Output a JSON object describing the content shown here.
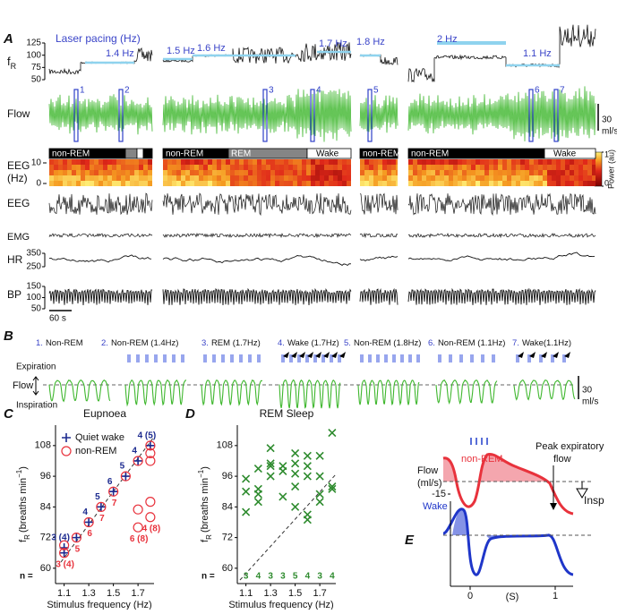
{
  "panel_A": {
    "label": "A",
    "pacing_title": "Laser pacing (Hz)",
    "fr_label": {
      "main": "f",
      "sub": "R"
    },
    "fr_ticks": [
      125,
      100,
      75,
      50
    ],
    "pacing_labels": [
      "1.4 Hz",
      "1.5 Hz",
      "1.6 Hz",
      "1.7 Hz",
      "1.8 Hz",
      "2 Hz",
      "1.1 Hz"
    ],
    "flow_label": "Flow",
    "flow_scale": [
      "30",
      "ml/s"
    ],
    "markers": [
      "1",
      "2",
      "3",
      "4",
      "5",
      "6",
      "7"
    ],
    "states": [
      "non-REM",
      "non-REM",
      "REM",
      "Wake",
      "non-REM",
      "non-REM",
      "Wake"
    ],
    "eeg_hz_label": [
      "EEG",
      "(Hz)"
    ],
    "eeg_hz_ticks": [
      10,
      0
    ],
    "power_label": "Power (au)",
    "power_ticks": [
      1,
      0
    ],
    "eeg_label": "EEG",
    "emg_label": "EMG",
    "hr_label": "HR",
    "hr_ticks": [
      350,
      250
    ],
    "bp_label": "BP",
    "bp_ticks": [
      150,
      100,
      50
    ],
    "time_scale": "60 s"
  },
  "panel_B": {
    "label": "B",
    "epochs": [
      {
        "n": "1.",
        "text": "Non-REM"
      },
      {
        "n": "2.",
        "text": "Non-REM (1.4Hz)"
      },
      {
        "n": "3.",
        "text": "REM (1.7Hz)"
      },
      {
        "n": "4.",
        "text": "Wake (1.7Hz)"
      },
      {
        "n": "5.",
        "text": "Non-REM (1.8Hz)"
      },
      {
        "n": "6.",
        "text": "Non-REM (1.1Hz)"
      },
      {
        "n": "7.",
        "text": "Wake(1.1Hz)"
      }
    ],
    "expiration": "Expiration",
    "flow": "Flow",
    "inspiration": "Inspiration",
    "scale": [
      "30",
      "ml/s"
    ]
  },
  "chart_data": [
    {
      "type": "scatter",
      "label": "C",
      "title": "Eupnoea",
      "ylabel": {
        "main": "f",
        "sub": "R",
        "unit": "(breaths min",
        "sup": "−1",
        "close": ")"
      },
      "xlabel": "Stimulus frequency (Hz)",
      "xlim": [
        1.03,
        1.83
      ],
      "ylim": [
        54,
        116
      ],
      "xticks": [
        1.1,
        1.3,
        1.5,
        1.7
      ],
      "yticks": [
        60,
        72,
        84,
        96,
        108
      ],
      "legend": "top-left",
      "n_label": "n =",
      "series": [
        {
          "name": "Quiet wake",
          "color": "#1c2a8f",
          "marker": "plus",
          "x": [
            1.1,
            1.1,
            1.2,
            1.3,
            1.4,
            1.5,
            1.6,
            1.7,
            1.8
          ],
          "values": [
            66,
            68,
            72,
            78,
            84,
            90,
            96,
            102,
            108
          ],
          "n_labels": [
            {
              "x": 1.1,
              "label": "3 (4)"
            },
            {
              "x": 1.3,
              "label": "4"
            },
            {
              "x": 1.4,
              "label": "5"
            },
            {
              "x": 1.5,
              "label": "6"
            },
            {
              "x": 1.6,
              "label": "5"
            },
            {
              "x": 1.7,
              "label": "4"
            },
            {
              "x": 1.8,
              "label": "4 (5)"
            }
          ]
        },
        {
          "name": "non-REM",
          "color": "#e8323c",
          "marker": "circle",
          "x": [
            1.1,
            1.1,
            1.2,
            1.3,
            1.4,
            1.5,
            1.6,
            1.7,
            1.7,
            1.7,
            1.8,
            1.8,
            1.8,
            1.8,
            1.8
          ],
          "values": [
            66,
            69,
            72,
            78,
            84,
            90,
            96,
            102,
            83,
            76,
            108,
            105,
            102,
            86,
            80
          ],
          "n_labels": [
            {
              "x": 1.1,
              "label": "3 (4)"
            },
            {
              "x": 1.2,
              "label": "5"
            },
            {
              "x": 1.3,
              "label": "6"
            },
            {
              "x": 1.4,
              "label": "7"
            },
            {
              "x": 1.5,
              "label": "7"
            },
            {
              "x": 1.7,
              "label": "6 (8)"
            },
            {
              "x": 1.8,
              "label": "4 (8)"
            }
          ]
        }
      ]
    },
    {
      "type": "scatter",
      "label": "D",
      "title": "REM Sleep",
      "ylabel": {
        "main": "f",
        "sub": "R",
        "unit": "(breaths min",
        "sup": "−1",
        "close": ")"
      },
      "xlabel": "Stimulus frequency (Hz)",
      "xlim": [
        1.03,
        1.83
      ],
      "ylim": [
        54,
        116
      ],
      "xticks": [
        1.1,
        1.3,
        1.5,
        1.7
      ],
      "yticks": [
        60,
        72,
        84,
        96,
        108
      ],
      "n_label": "n =",
      "n_x": [
        1.1,
        1.2,
        1.3,
        1.4,
        1.5,
        1.6,
        1.7,
        1.8
      ],
      "n_values": [
        3,
        4,
        3,
        3,
        5,
        4,
        3,
        4
      ],
      "series": [
        {
          "color": "#2e8b2e",
          "marker": "cross",
          "x": [
            1.1,
            1.1,
            1.1,
            1.2,
            1.2,
            1.2,
            1.2,
            1.3,
            1.3,
            1.3,
            1.3,
            1.4,
            1.4,
            1.4,
            1.5,
            1.5,
            1.5,
            1.5,
            1.5,
            1.6,
            1.6,
            1.6,
            1.6,
            1.6,
            1.7,
            1.7,
            1.7,
            1.7,
            1.8,
            1.8,
            1.8
          ],
          "values": [
            82,
            90,
            95,
            86,
            89,
            91,
            99,
            96,
            100,
            101,
            107,
            88,
            98,
            100,
            84,
            92,
            97,
            101,
            105,
            79,
            81,
            96,
            100,
            104,
            86,
            89,
            96,
            104,
            91,
            92,
            113
          ]
        }
      ]
    }
  ],
  "panel_E": {
    "label": "E",
    "flow_label": [
      "Flow",
      "(ml/s)"
    ],
    "nonrem": "non-REM",
    "wake": "Wake",
    "flow_tick": -15,
    "peak": [
      "Peak expiratory",
      "flow"
    ],
    "insp": "Insp",
    "xticks": [
      0,
      1
    ],
    "xlabel": "(S)"
  }
}
